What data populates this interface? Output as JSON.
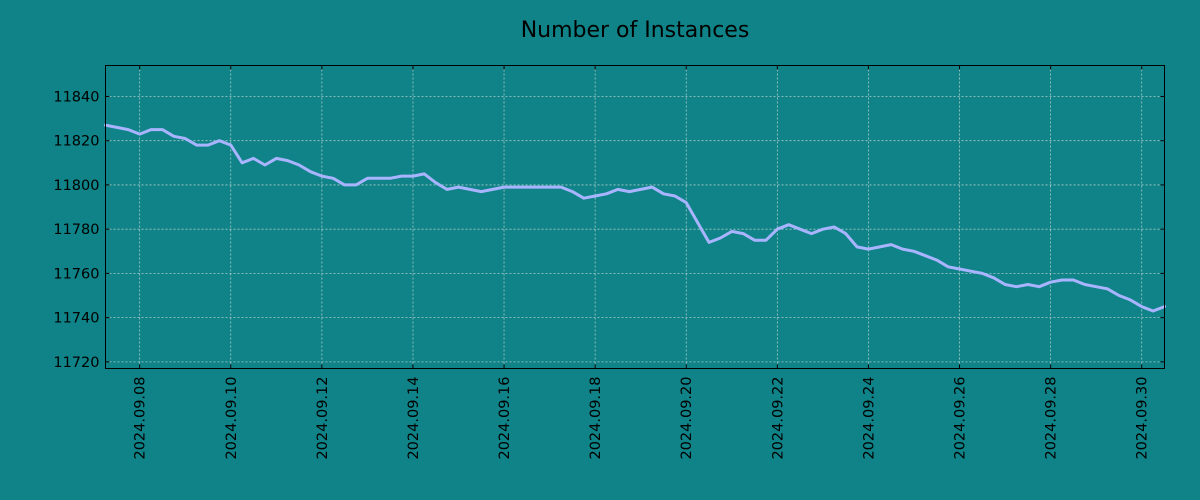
{
  "colors": {
    "background": "#0f8387",
    "line": "#a9b4ff",
    "grid": "#c8d8d8"
  },
  "chart_data": {
    "type": "line",
    "title": "Number of Instances",
    "xlabel": "",
    "ylabel": "",
    "grid": true,
    "legend": "none",
    "xlim": [
      "2024-09-07 06:00",
      "2024-09-30 12:00"
    ],
    "ylim": [
      11717,
      11854
    ],
    "x_ticks": [
      "2024.09.08",
      "2024.09.10",
      "2024.09.12",
      "2024.09.14",
      "2024.09.16",
      "2024.09.18",
      "2024.09.20",
      "2024.09.22",
      "2024.09.24",
      "2024.09.26",
      "2024.09.28",
      "2024.09.30"
    ],
    "y_ticks": [
      11720,
      11740,
      11760,
      11780,
      11800,
      11820,
      11840
    ],
    "series": [
      {
        "x": [
          "2024-09-07 06:00",
          "2024-09-07 12:00",
          "2024-09-07 18:00",
          "2024-09-08 00:00",
          "2024-09-08 06:00",
          "2024-09-08 12:00",
          "2024-09-08 18:00",
          "2024-09-09 00:00",
          "2024-09-09 06:00",
          "2024-09-09 12:00",
          "2024-09-09 18:00",
          "2024-09-10 00:00",
          "2024-09-10 06:00",
          "2024-09-10 12:00",
          "2024-09-10 18:00",
          "2024-09-11 00:00",
          "2024-09-11 06:00",
          "2024-09-11 12:00",
          "2024-09-11 18:00",
          "2024-09-12 00:00",
          "2024-09-12 06:00",
          "2024-09-12 12:00",
          "2024-09-12 18:00",
          "2024-09-13 00:00",
          "2024-09-13 06:00",
          "2024-09-13 12:00",
          "2024-09-13 18:00",
          "2024-09-14 00:00",
          "2024-09-14 06:00",
          "2024-09-14 12:00",
          "2024-09-14 18:00",
          "2024-09-15 00:00",
          "2024-09-15 06:00",
          "2024-09-15 12:00",
          "2024-09-15 18:00",
          "2024-09-16 00:00",
          "2024-09-16 06:00",
          "2024-09-16 12:00",
          "2024-09-16 18:00",
          "2024-09-17 00:00",
          "2024-09-17 06:00",
          "2024-09-17 12:00",
          "2024-09-17 18:00",
          "2024-09-18 00:00",
          "2024-09-18 06:00",
          "2024-09-18 12:00",
          "2024-09-18 18:00",
          "2024-09-19 00:00",
          "2024-09-19 06:00",
          "2024-09-19 12:00",
          "2024-09-19 18:00",
          "2024-09-20 00:00",
          "2024-09-20 06:00",
          "2024-09-20 12:00",
          "2024-09-20 18:00",
          "2024-09-21 00:00",
          "2024-09-21 06:00",
          "2024-09-21 12:00",
          "2024-09-21 18:00",
          "2024-09-22 00:00",
          "2024-09-22 06:00",
          "2024-09-22 12:00",
          "2024-09-22 18:00",
          "2024-09-23 00:00",
          "2024-09-23 06:00",
          "2024-09-23 12:00",
          "2024-09-23 18:00",
          "2024-09-24 00:00",
          "2024-09-24 06:00",
          "2024-09-24 12:00",
          "2024-09-24 18:00",
          "2024-09-25 00:00",
          "2024-09-25 06:00",
          "2024-09-25 12:00",
          "2024-09-25 18:00",
          "2024-09-26 00:00",
          "2024-09-26 06:00",
          "2024-09-26 12:00",
          "2024-09-26 18:00",
          "2024-09-27 00:00",
          "2024-09-27 06:00",
          "2024-09-27 12:00",
          "2024-09-27 18:00",
          "2024-09-28 00:00",
          "2024-09-28 06:00",
          "2024-09-28 12:00",
          "2024-09-28 18:00",
          "2024-09-29 00:00",
          "2024-09-29 06:00",
          "2024-09-29 12:00",
          "2024-09-29 18:00",
          "2024-09-30 00:00",
          "2024-09-30 06:00",
          "2024-09-30 12:00"
        ],
        "y": [
          11827,
          11826,
          11825,
          11823,
          11825,
          11825,
          11822,
          11821,
          11818,
          11818,
          11820,
          11818,
          11810,
          11812,
          11809,
          11812,
          11811,
          11809,
          11806,
          11804,
          11803,
          11800,
          11800,
          11803,
          11803,
          11803,
          11804,
          11804,
          11805,
          11801,
          11798,
          11799,
          11798,
          11797,
          11798,
          11799,
          11799,
          11799,
          11799,
          11799,
          11799,
          11797,
          11794,
          11795,
          11796,
          11798,
          11797,
          11798,
          11799,
          11796,
          11795,
          11792,
          11783,
          11774,
          11776,
          11779,
          11778,
          11775,
          11775,
          11780,
          11782,
          11780,
          11778,
          11780,
          11781,
          11778,
          11772,
          11771,
          11772,
          11773,
          11771,
          11770,
          11768,
          11766,
          11763,
          11762,
          11761,
          11760,
          11758,
          11755,
          11754,
          11755,
          11754,
          11756,
          11757,
          11757,
          11755,
          11754,
          11753,
          11750,
          11748,
          11745,
          11743,
          11745
        ]
      }
    ]
  }
}
